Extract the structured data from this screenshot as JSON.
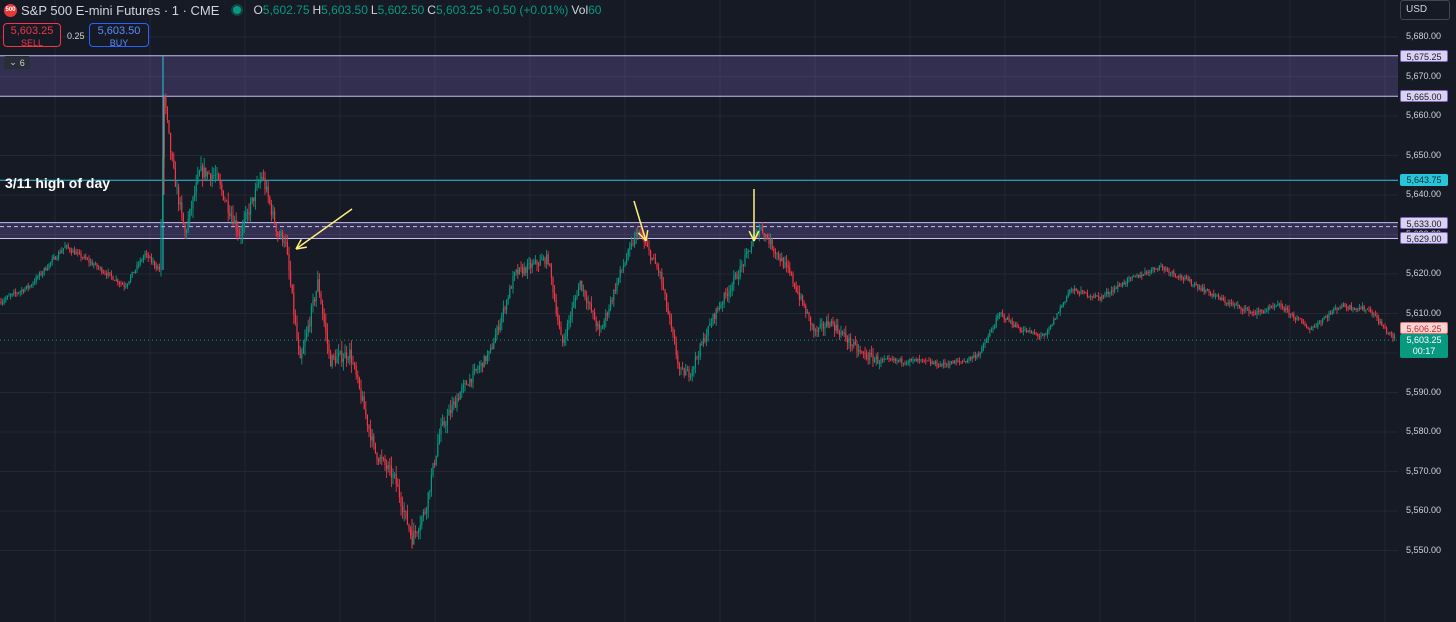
{
  "header": {
    "logo_text": "500",
    "symbol": "S&P 500 E-mini Futures · 1 · CME",
    "ohlc": [
      {
        "k": "O",
        "v": "5,602.75"
      },
      {
        "k": "H",
        "v": "5,603.50"
      },
      {
        "k": "L",
        "v": "5,602.50"
      },
      {
        "k": "C",
        "v": "5,603.25"
      },
      {
        "k": "",
        "v": "+0.50 (+0.01%)"
      },
      {
        "k": "Vol",
        "v": "60"
      }
    ]
  },
  "trade": {
    "sell_price": "5,603.25",
    "sell_label": "SELL",
    "spread": "0.25",
    "buy_price": "5,603.50",
    "buy_label": "BUY"
  },
  "collapse_label": "6",
  "currency": "USD",
  "annotation": "3/11 high of day",
  "axis_ticks": [
    "5,680.00",
    "5,670.00",
    "5,660.00",
    "5,650.00",
    "5,640.00",
    "5,630.00",
    "5,620.00",
    "5,610.00",
    "5,600.00",
    "5,590.00",
    "5,580.00",
    "5,570.00",
    "5,560.00",
    "5,550.00"
  ],
  "axis_tick_values": [
    5680,
    5670,
    5660,
    5650,
    5640,
    5630,
    5620,
    5610,
    5600,
    5590,
    5580,
    5570,
    5560,
    5550
  ],
  "price_labels": [
    {
      "text": "5,675.25",
      "value": 5675.25,
      "style": "purple"
    },
    {
      "text": "5,665.00",
      "value": 5665.0,
      "style": "purple"
    },
    {
      "text": "5,643.75",
      "value": 5643.75,
      "style": "cyan"
    },
    {
      "text": "5,633.00",
      "value": 5633.0,
      "style": "purple"
    },
    {
      "text": "5,629.00",
      "value": 5629.0,
      "style": "purple"
    },
    {
      "text": "5,606.25",
      "value": 5606.25,
      "style": "red"
    }
  ],
  "last_price": {
    "text": "5,603.25",
    "value": 5603.25,
    "countdown": "00:17"
  },
  "colors": {
    "up": "#089981",
    "down": "#f23645",
    "zone": "#7e67c2",
    "hod": "#26c6da",
    "arrow": "#fff176"
  },
  "chart_data": {
    "type": "candlestick",
    "ylim": [
      5548,
      5685
    ],
    "zones": [
      [
        5665.0,
        5675.25
      ],
      [
        5629.0,
        5633.0
      ]
    ],
    "horizontal_lines": [
      5643.75
    ],
    "path": [
      [
        0,
        5613
      ],
      [
        30,
        5617
      ],
      [
        65,
        5627
      ],
      [
        90,
        5623
      ],
      [
        125,
        5617
      ],
      [
        145,
        5625
      ],
      [
        160,
        5621
      ],
      [
        164,
        5665
      ],
      [
        172,
        5648
      ],
      [
        185,
        5630
      ],
      [
        200,
        5646
      ],
      [
        215,
        5645
      ],
      [
        240,
        5630
      ],
      [
        262,
        5645
      ],
      [
        278,
        5630
      ],
      [
        285,
        5629
      ],
      [
        300,
        5597
      ],
      [
        318,
        5618
      ],
      [
        330,
        5598
      ],
      [
        350,
        5600
      ],
      [
        375,
        5575
      ],
      [
        395,
        5568
      ],
      [
        412,
        5553
      ],
      [
        425,
        5560
      ],
      [
        440,
        5580
      ],
      [
        460,
        5590
      ],
      [
        490,
        5600
      ],
      [
        515,
        5620
      ],
      [
        548,
        5624
      ],
      [
        562,
        5602
      ],
      [
        580,
        5618
      ],
      [
        600,
        5605
      ],
      [
        620,
        5620
      ],
      [
        638,
        5631
      ],
      [
        660,
        5620
      ],
      [
        680,
        5595
      ],
      [
        690,
        5595
      ],
      [
        715,
        5610
      ],
      [
        740,
        5621
      ],
      [
        760,
        5632
      ],
      [
        790,
        5620
      ],
      [
        815,
        5605
      ],
      [
        830,
        5608
      ],
      [
        860,
        5600
      ],
      [
        880,
        5598
      ],
      [
        920,
        5598
      ],
      [
        940,
        5597
      ],
      [
        965,
        5598
      ],
      [
        980,
        5600
      ],
      [
        1000,
        5610
      ],
      [
        1020,
        5606
      ],
      [
        1045,
        5604
      ],
      [
        1070,
        5616
      ],
      [
        1100,
        5614
      ],
      [
        1125,
        5618
      ],
      [
        1160,
        5622
      ],
      [
        1190,
        5618
      ],
      [
        1225,
        5613
      ],
      [
        1255,
        5610
      ],
      [
        1280,
        5612
      ],
      [
        1310,
        5606
      ],
      [
        1340,
        5612
      ],
      [
        1370,
        5611
      ],
      [
        1385,
        5606
      ],
      [
        1396,
        5603.25
      ]
    ]
  }
}
